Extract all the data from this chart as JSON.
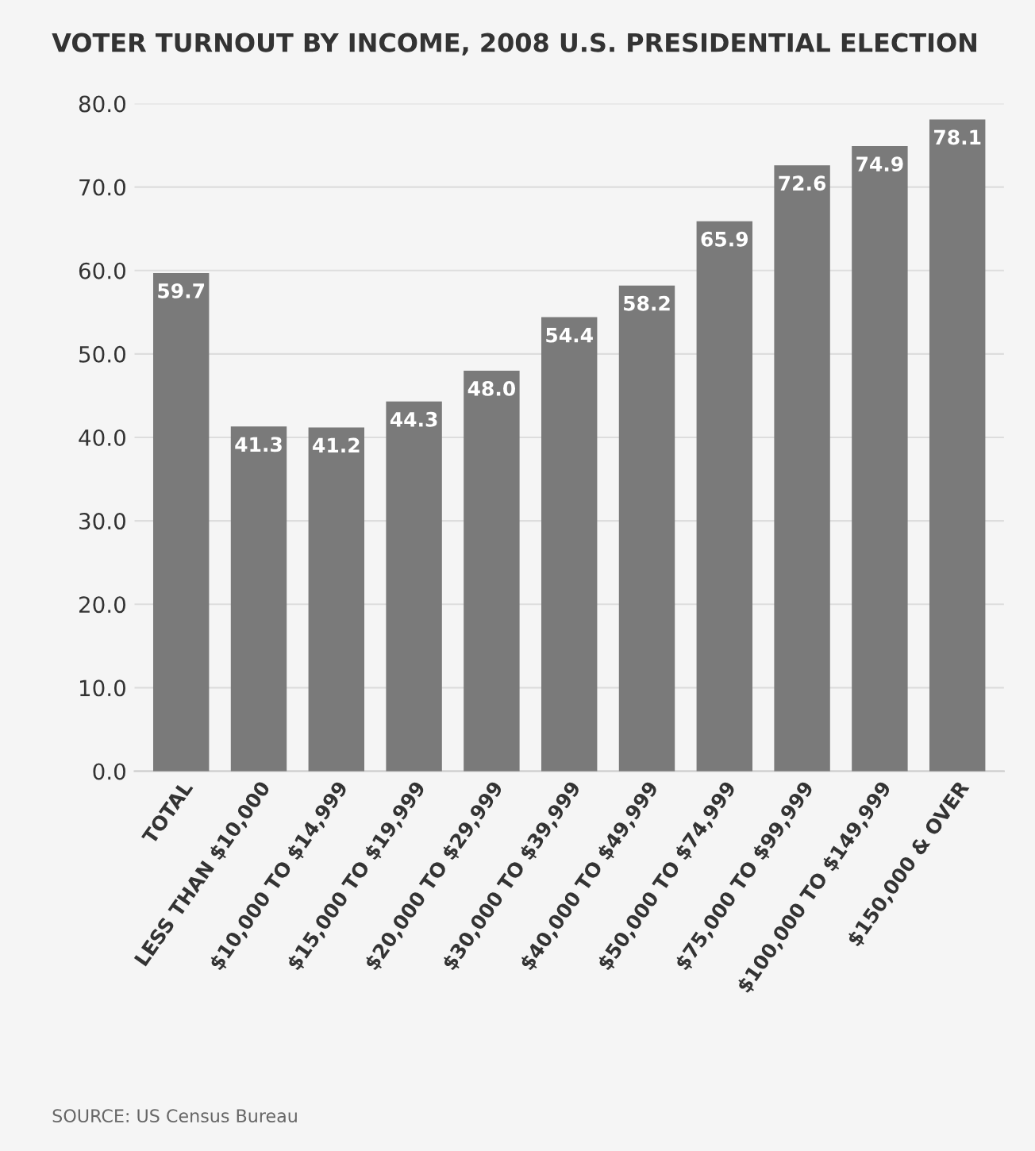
{
  "chart_data": {
    "type": "bar",
    "title": "VOTER TURNOUT BY INCOME, 2008 U.S. PRESIDENTIAL ELECTION",
    "categories": [
      "TOTAL",
      "LESS THAN $10,000",
      "$10,000 TO $14,999",
      "$15,000 TO $19,999",
      "$20,000 TO $29,999",
      "$30,000 TO $39,999",
      "$40,000 TO $49,999",
      "$50,000 TO $74,999",
      "$75,000 TO $99,999",
      "$100,000 TO $149,999",
      "$150,000 & OVER"
    ],
    "values": [
      59.7,
      41.3,
      41.2,
      44.3,
      48.0,
      54.4,
      58.2,
      65.9,
      72.6,
      74.9,
      78.1
    ],
    "value_labels": [
      "59.7",
      "41.3",
      "41.2",
      "44.3",
      "48.0",
      "54.4",
      "58.2",
      "65.9",
      "72.6",
      "74.9",
      "78.1"
    ],
    "color": "#7a7a7a",
    "ylim": [
      0,
      80
    ],
    "yticks": [
      {
        "value": 0,
        "label": "0.0"
      },
      {
        "value": 10,
        "label": "10.0"
      },
      {
        "value": 20,
        "label": "20.0"
      },
      {
        "value": 30,
        "label": "30.0"
      },
      {
        "value": 40,
        "label": "40.0"
      },
      {
        "value": 50,
        "label": "50.0"
      },
      {
        "value": 60,
        "label": "60.0"
      },
      {
        "value": 70,
        "label": "70.0"
      },
      {
        "value": 80,
        "label": "80.0"
      }
    ],
    "grid": "y",
    "annotations": [
      "SOURCE: US Census Bureau"
    ]
  }
}
